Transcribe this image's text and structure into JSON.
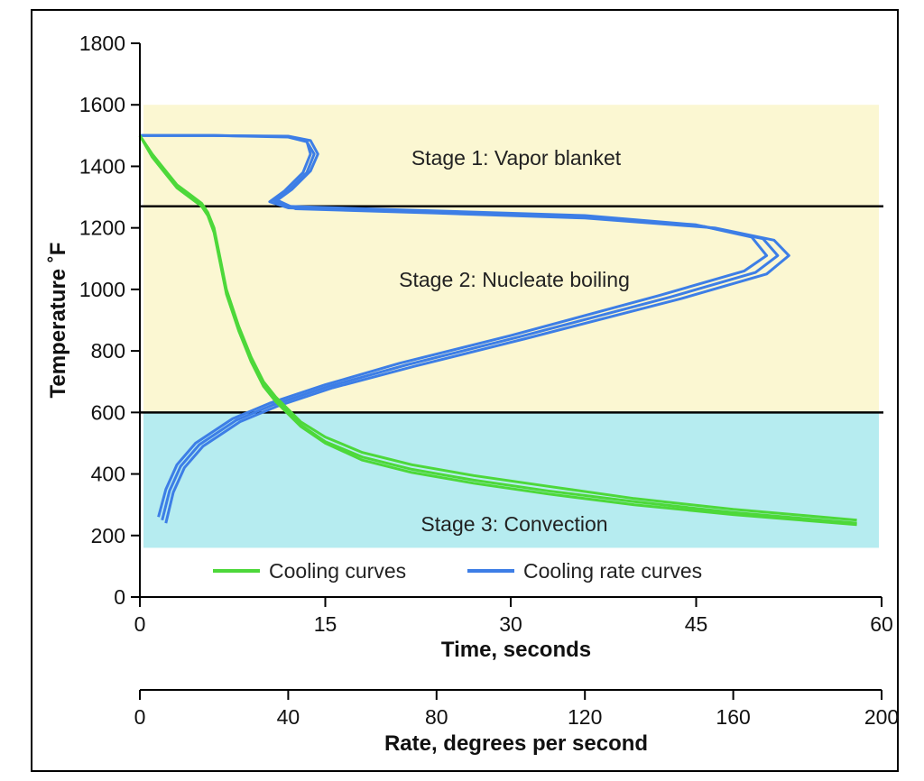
{
  "chart_data": {
    "type": "line",
    "y_axis": {
      "label": "Temperature ˚F",
      "range": [
        0,
        1800
      ],
      "ticks": [
        0,
        200,
        400,
        600,
        800,
        1000,
        1200,
        1400,
        1600,
        1800
      ]
    },
    "x_axis_time": {
      "label": "Time, seconds",
      "range": [
        0,
        60
      ],
      "ticks": [
        0,
        15,
        30,
        45,
        60
      ]
    },
    "x_axis_rate": {
      "label": "Rate, degrees per second",
      "range": [
        0,
        200
      ],
      "ticks": [
        0,
        40,
        80,
        120,
        160,
        200
      ]
    },
    "bands": [
      {
        "label": "Stage 1: Vapor blanket",
        "y_from": 1270,
        "y_to": 1600,
        "color": "#fbf7d2"
      },
      {
        "label": "Stage 2: Nucleate boiling",
        "y_from": 600,
        "y_to": 1270,
        "color": "#fbf7d2"
      },
      {
        "label": "Stage 3: Convection",
        "y_from": 160,
        "y_to": 600,
        "color": "#b6ecf0"
      }
    ],
    "boundaries": [
      1270,
      600
    ],
    "legend": {
      "position": "bottom-center",
      "entries": [
        {
          "name": "Cooling curves",
          "color": "#4dd83a"
        },
        {
          "name": "Cooling rate curves",
          "color": "#3d7ee6"
        }
      ]
    },
    "cooling_curves": [
      {
        "x_unit": "seconds",
        "points": [
          [
            0,
            1500
          ],
          [
            1,
            1440
          ],
          [
            2,
            1390
          ],
          [
            3,
            1340
          ],
          [
            4,
            1310
          ],
          [
            5,
            1280
          ],
          [
            5.5,
            1250
          ],
          [
            6,
            1200
          ],
          [
            6.5,
            1100
          ],
          [
            7,
            1000
          ],
          [
            8,
            880
          ],
          [
            9,
            780
          ],
          [
            10,
            700
          ],
          [
            11,
            650
          ],
          [
            12,
            610
          ],
          [
            13,
            570
          ],
          [
            15,
            520
          ],
          [
            18,
            470
          ],
          [
            22,
            430
          ],
          [
            27,
            395
          ],
          [
            33,
            360
          ],
          [
            40,
            320
          ],
          [
            48,
            285
          ],
          [
            58,
            250
          ]
        ]
      },
      {
        "x_unit": "seconds",
        "points": [
          [
            0,
            1500
          ],
          [
            1,
            1435
          ],
          [
            2,
            1385
          ],
          [
            3,
            1335
          ],
          [
            4,
            1305
          ],
          [
            5,
            1275
          ],
          [
            5.5,
            1245
          ],
          [
            6,
            1190
          ],
          [
            6.5,
            1090
          ],
          [
            7,
            990
          ],
          [
            8,
            870
          ],
          [
            9,
            770
          ],
          [
            10,
            690
          ],
          [
            11,
            640
          ],
          [
            12,
            600
          ],
          [
            13,
            560
          ],
          [
            15,
            505
          ],
          [
            18,
            455
          ],
          [
            22,
            415
          ],
          [
            27,
            380
          ],
          [
            33,
            345
          ],
          [
            40,
            310
          ],
          [
            48,
            275
          ],
          [
            58,
            240
          ]
        ]
      },
      {
        "x_unit": "seconds",
        "points": [
          [
            0,
            1500
          ],
          [
            1,
            1430
          ],
          [
            2,
            1380
          ],
          [
            3,
            1330
          ],
          [
            4,
            1300
          ],
          [
            5,
            1270
          ],
          [
            5.5,
            1240
          ],
          [
            6,
            1185
          ],
          [
            6.5,
            1085
          ],
          [
            7,
            985
          ],
          [
            8,
            865
          ],
          [
            9,
            765
          ],
          [
            10,
            685
          ],
          [
            11,
            635
          ],
          [
            12,
            595
          ],
          [
            13,
            555
          ],
          [
            15,
            500
          ],
          [
            18,
            445
          ],
          [
            22,
            405
          ],
          [
            27,
            370
          ],
          [
            33,
            335
          ],
          [
            40,
            300
          ],
          [
            48,
            268
          ],
          [
            58,
            235
          ]
        ]
      }
    ],
    "cooling_rate_curves": [
      {
        "x_unit": "degrees per second",
        "points": [
          [
            0,
            1500
          ],
          [
            20,
            1500
          ],
          [
            40,
            1495
          ],
          [
            45,
            1480
          ],
          [
            47,
            1440
          ],
          [
            45,
            1380
          ],
          [
            40,
            1320
          ],
          [
            36,
            1290
          ],
          [
            40,
            1270
          ],
          [
            80,
            1255
          ],
          [
            120,
            1240
          ],
          [
            150,
            1210
          ],
          [
            165,
            1170
          ],
          [
            169,
            1110
          ],
          [
            163,
            1060
          ],
          [
            140,
            980
          ],
          [
            100,
            850
          ],
          [
            70,
            760
          ],
          [
            50,
            690
          ],
          [
            35,
            630
          ],
          [
            25,
            580
          ],
          [
            15,
            500
          ],
          [
            10,
            430
          ],
          [
            7,
            350
          ],
          [
            5,
            260
          ]
        ]
      },
      {
        "x_unit": "degrees per second",
        "points": [
          [
            0,
            1500
          ],
          [
            20,
            1500
          ],
          [
            40,
            1497
          ],
          [
            45,
            1482
          ],
          [
            46,
            1440
          ],
          [
            44,
            1380
          ],
          [
            39,
            1320
          ],
          [
            35,
            1285
          ],
          [
            40,
            1265
          ],
          [
            80,
            1250
          ],
          [
            120,
            1235
          ],
          [
            152,
            1205
          ],
          [
            168,
            1165
          ],
          [
            172,
            1110
          ],
          [
            166,
            1055
          ],
          [
            143,
            975
          ],
          [
            102,
            845
          ],
          [
            72,
            755
          ],
          [
            51,
            685
          ],
          [
            36,
            625
          ],
          [
            26,
            575
          ],
          [
            16,
            495
          ],
          [
            11,
            425
          ],
          [
            8,
            345
          ],
          [
            6,
            250
          ]
        ]
      },
      {
        "x_unit": "degrees per second",
        "points": [
          [
            0,
            1500
          ],
          [
            20,
            1500
          ],
          [
            40,
            1498
          ],
          [
            46,
            1484
          ],
          [
            48,
            1440
          ],
          [
            46,
            1385
          ],
          [
            41,
            1325
          ],
          [
            37,
            1290
          ],
          [
            42,
            1262
          ],
          [
            80,
            1248
          ],
          [
            120,
            1232
          ],
          [
            155,
            1200
          ],
          [
            171,
            1160
          ],
          [
            175,
            1110
          ],
          [
            169,
            1050
          ],
          [
            146,
            970
          ],
          [
            104,
            840
          ],
          [
            74,
            750
          ],
          [
            52,
            680
          ],
          [
            37,
            620
          ],
          [
            27,
            570
          ],
          [
            17,
            490
          ],
          [
            12,
            420
          ],
          [
            9,
            340
          ],
          [
            7,
            240
          ]
        ]
      }
    ]
  }
}
